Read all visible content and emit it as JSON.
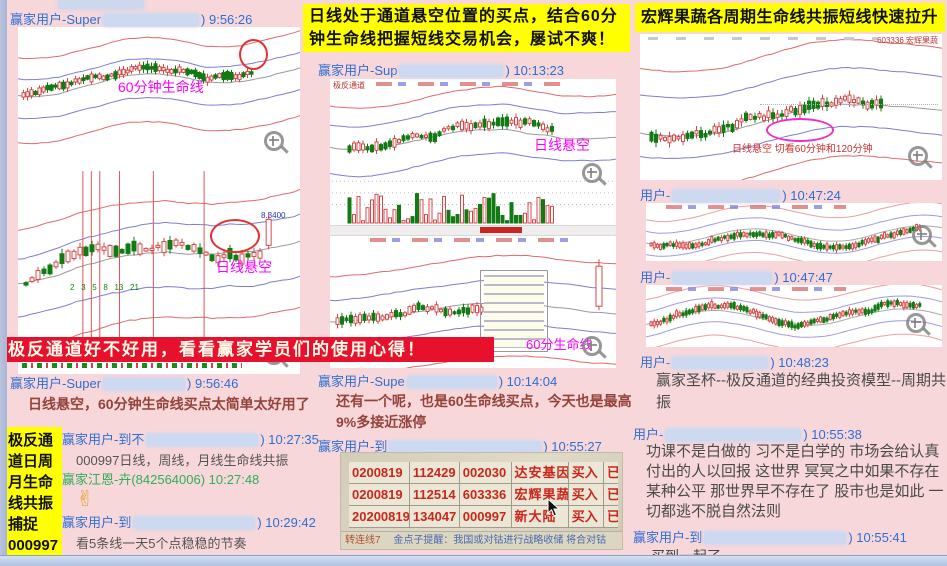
{
  "banners": {
    "middle_yellow": "日线处于通道悬空位置的买点，结合60分钟生命线把握短线交易机会，屡试不爽！",
    "right_yellow": "宏辉果蔬各周期生命线共振短线快速拉升",
    "red_banner": "极反通道好不好用，看看赢家学员们的使用心得！",
    "left_vertical": {
      "l1": "极反通",
      "l2": "道日周",
      "l3": "月生命",
      "l4": "线共振",
      "l5": "捕捉",
      "l6": "000997"
    }
  },
  "left": {
    "chart": {
      "label_60min": "60分钟生命线",
      "label_daily": "日线悬空",
      "price": "8.3400",
      "gann": "2   3   5   8   13   21"
    },
    "messages": [
      {
        "user": "赢家用户-Super",
        "tail": ") 9:56:26"
      },
      {
        "user": "赢家用户-Super",
        "tail": ") 9:56:46",
        "text": "日线悬空，60分钟生命线买点太简单太好用了"
      },
      {
        "user": "赢家用户-到不",
        "tail": ") 10:27:35",
        "text": "000997日线，周线，月线生命线共振"
      },
      {
        "user": "赢家江恩-卉(842564006)",
        "tail": " 10:27:48",
        "emoji": "✌"
      },
      {
        "user": "赢家用户-到",
        "tail": ") 10:29:42",
        "text": "看5条线一天5个点稳稳的节奏"
      }
    ]
  },
  "middle": {
    "chart": {
      "header": "极反通道",
      "label_daily": "日线悬空",
      "label_60": "60分生命线"
    },
    "messages": [
      {
        "user": "赢家用户-Sup",
        "tail": ") 10:13:23"
      },
      {
        "user": "赢家用户-Supe",
        "tail": ") 10:14:04",
        "text": "还有一个呢，也是60生命线买点，今天也是最高9%多接近涨停"
      },
      {
        "user": "赢家用户-到",
        "tail": ") 10:55:27"
      }
    ],
    "photo": {
      "rows": [
        [
          "0200819",
          "112429",
          "002030",
          "达安基因",
          "买入"
        ],
        [
          "0200819",
          "112514",
          "603336",
          "宏辉果蔬",
          "买入"
        ],
        [
          "20200819",
          "134047",
          "000997",
          "新大陆",
          "买入"
        ]
      ],
      "partial": "已",
      "corner": "转连线7",
      "ticker": "金点子提醒：我国或对钴进行战略收储 将合对钴"
    }
  },
  "right": {
    "chart": {
      "code": "603336 宏辉果蔬",
      "annotation": "日线悬空 切看60分钟和120分钟"
    },
    "messages": [
      {
        "user": "用户-",
        "tail": ") 10:47:24"
      },
      {
        "user": "用户-",
        "tail": ") 10:47:47"
      },
      {
        "user": "用户-",
        "tail": ") 10:48:23",
        "text": "赢家圣杯--极反通道的经典投资模型--周期共振"
      },
      {
        "user": "用户-",
        "tail": ") 10:55:38",
        "text": "功课不是白做的 习不是白学的 市场会给认真付出的人以回报 这世界 冥冥之中如果不存在某种公平 那世界早不存在了 股市也是如此 一切都逃不脱自然法则"
      },
      {
        "user": "赢家用户-到",
        "tail": ") 10:55:41",
        "text": "买到一起了"
      }
    ]
  },
  "colors": {
    "accent_blue": "#2b6fd6",
    "accent_green": "#2fae57",
    "banner_red": "#e8112d",
    "banner_yellow": "#ffff00",
    "annotation_magenta": "#ff00ff",
    "message_red": "#93433a"
  }
}
